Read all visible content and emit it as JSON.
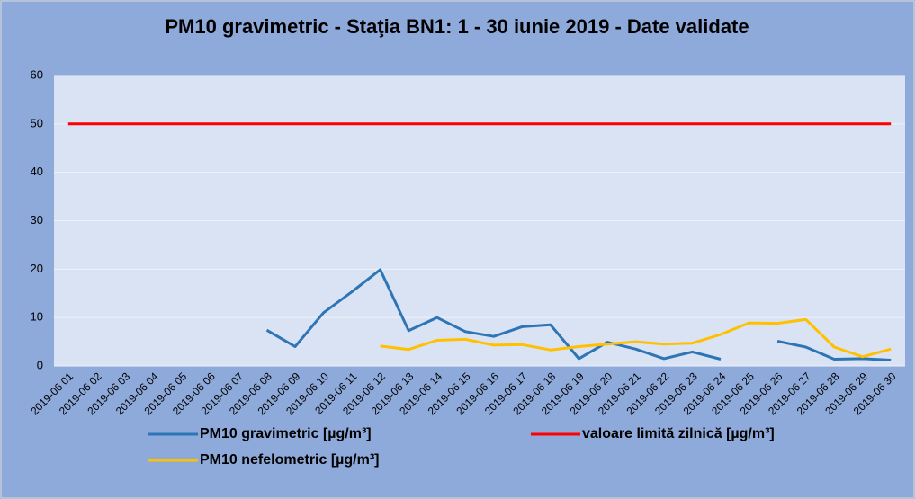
{
  "chart_data": {
    "type": "line",
    "title": "PM10 gravimetric - Staţia BN1: 1 - 30 iunie 2019 - Date validate",
    "categories": [
      "2019-06 01",
      "2019-06 02",
      "2019-06 03",
      "2019-06 04",
      "2019-06 05",
      "2019-06 06",
      "2019-06 07",
      "2019-06 08",
      "2019-06 09",
      "2019-06 10",
      "2019-06 11",
      "2019-06 12",
      "2019-06 13",
      "2019-06 14",
      "2019-06 15",
      "2019-06 16",
      "2019-06 17",
      "2019-06 18",
      "2019-06 19",
      "2019-06 20",
      "2019-06 21",
      "2019-06 22",
      "2019-06 23",
      "2019-06 24",
      "2019-06 25",
      "2019-06 26",
      "2019-06 27",
      "2019-06 28",
      "2019-06 29",
      "2019-06 30"
    ],
    "series": [
      {
        "name": "PM10 gravimetric [µg/m³]",
        "color": "#2e75b6",
        "values": [
          null,
          null,
          null,
          null,
          null,
          null,
          null,
          7.4,
          4,
          11,
          15.3,
          19.9,
          7.3,
          10,
          7.1,
          6.1,
          8.1,
          8.5,
          1.5,
          4.9,
          3.5,
          1.5,
          2.9,
          1.4,
          null,
          5.1,
          3.9,
          1.4,
          1.5,
          1.2
        ]
      },
      {
        "name": "valoare limită zilnică [µg/m³]",
        "color": "#ff0000",
        "values": [
          50,
          50,
          50,
          50,
          50,
          50,
          50,
          50,
          50,
          50,
          50,
          50,
          50,
          50,
          50,
          50,
          50,
          50,
          50,
          50,
          50,
          50,
          50,
          50,
          50,
          50,
          50,
          50,
          50,
          50
        ]
      },
      {
        "name": "PM10 nefelometric [µg/m³]",
        "color": "#ffc000",
        "values": [
          null,
          null,
          null,
          null,
          null,
          null,
          null,
          null,
          null,
          null,
          null,
          4.1,
          3.4,
          5.3,
          5.5,
          4.3,
          4.4,
          3.3,
          4,
          4.5,
          5,
          4.5,
          4.7,
          6.5,
          8.9,
          8.8,
          9.6,
          3.9,
          1.9,
          3.5
        ]
      }
    ],
    "ylim": [
      0,
      60
    ],
    "yticks": [
      0,
      10,
      20,
      30,
      40,
      50,
      60
    ],
    "grid": true
  }
}
